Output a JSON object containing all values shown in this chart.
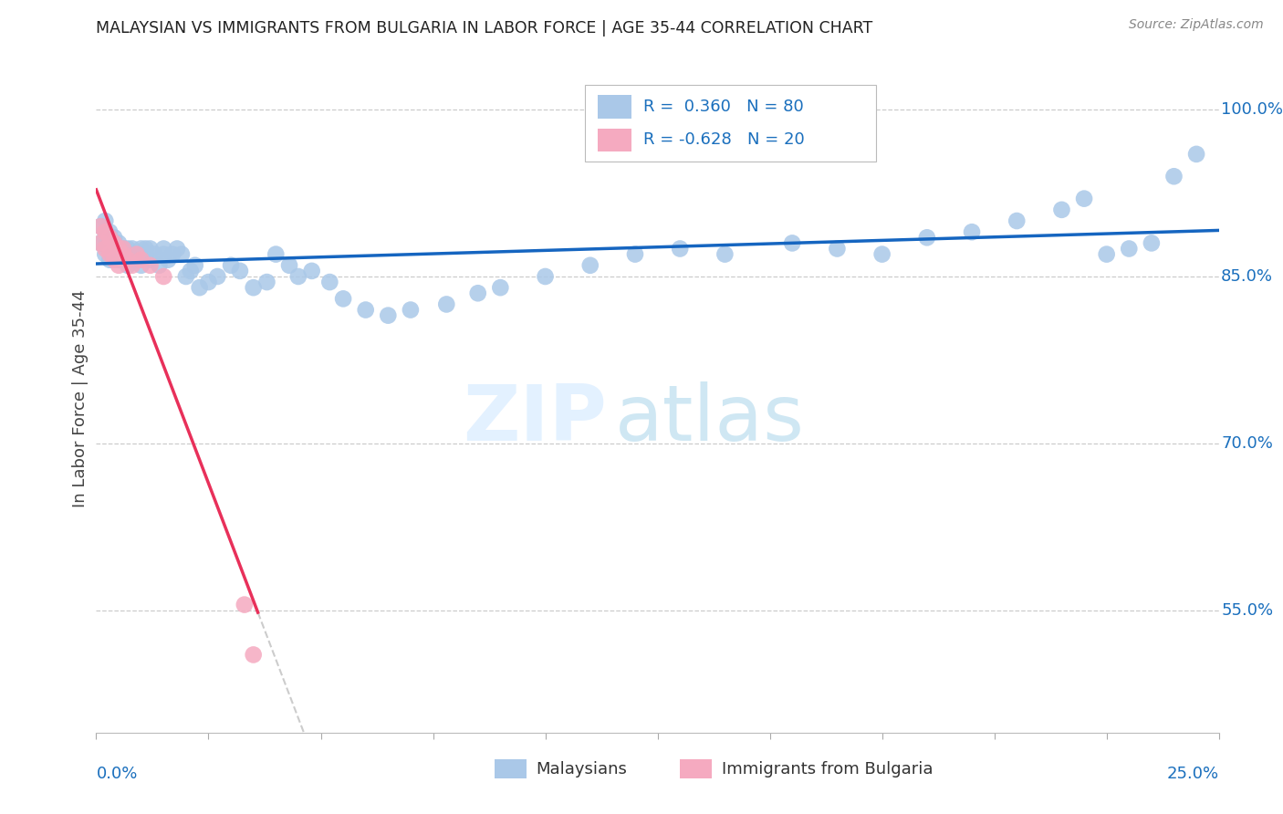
{
  "title": "MALAYSIAN VS IMMIGRANTS FROM BULGARIA IN LABOR FORCE | AGE 35-44 CORRELATION CHART",
  "source": "Source: ZipAtlas.com",
  "ylabel": "In Labor Force | Age 35-44",
  "yticks": [
    0.55,
    0.7,
    0.85,
    1.0
  ],
  "ytick_labels": [
    "55.0%",
    "70.0%",
    "85.0%",
    "100.0%"
  ],
  "xmin": 0.0,
  "xmax": 0.25,
  "ymin": 0.44,
  "ymax": 1.04,
  "blue_r": "0.360",
  "blue_n": "80",
  "pink_r": "-0.628",
  "pink_n": "20",
  "blue_color": "#aac8e8",
  "pink_color": "#f5aac0",
  "line_blue": "#1565c0",
  "line_pink": "#e8305a",
  "line_dash_color": "#cccccc",
  "legend_text_color": "#1a6fbd",
  "axis_label_color": "#1a6fbd",
  "mal_x": [
    0.001,
    0.001,
    0.002,
    0.002,
    0.002,
    0.003,
    0.003,
    0.003,
    0.003,
    0.004,
    0.004,
    0.004,
    0.005,
    0.005,
    0.005,
    0.005,
    0.006,
    0.006,
    0.006,
    0.007,
    0.007,
    0.007,
    0.008,
    0.008,
    0.009,
    0.009,
    0.01,
    0.01,
    0.011,
    0.011,
    0.012,
    0.012,
    0.013,
    0.014,
    0.015,
    0.015,
    0.016,
    0.017,
    0.018,
    0.019,
    0.02,
    0.021,
    0.022,
    0.023,
    0.025,
    0.027,
    0.03,
    0.032,
    0.035,
    0.038,
    0.04,
    0.043,
    0.045,
    0.048,
    0.052,
    0.055,
    0.06,
    0.065,
    0.07,
    0.078,
    0.085,
    0.09,
    0.1,
    0.11,
    0.12,
    0.13,
    0.14,
    0.155,
    0.165,
    0.175,
    0.185,
    0.195,
    0.205,
    0.215,
    0.22,
    0.225,
    0.23,
    0.235,
    0.24,
    0.245
  ],
  "mal_y": [
    0.88,
    0.895,
    0.87,
    0.885,
    0.9,
    0.865,
    0.875,
    0.88,
    0.89,
    0.87,
    0.875,
    0.885,
    0.865,
    0.875,
    0.88,
    0.87,
    0.865,
    0.875,
    0.87,
    0.875,
    0.86,
    0.87,
    0.865,
    0.875,
    0.87,
    0.865,
    0.875,
    0.86,
    0.87,
    0.875,
    0.865,
    0.875,
    0.87,
    0.86,
    0.875,
    0.87,
    0.865,
    0.87,
    0.875,
    0.87,
    0.85,
    0.855,
    0.86,
    0.84,
    0.845,
    0.85,
    0.86,
    0.855,
    0.84,
    0.845,
    0.87,
    0.86,
    0.85,
    0.855,
    0.845,
    0.83,
    0.82,
    0.815,
    0.82,
    0.825,
    0.835,
    0.84,
    0.85,
    0.86,
    0.87,
    0.875,
    0.87,
    0.88,
    0.875,
    0.87,
    0.885,
    0.89,
    0.9,
    0.91,
    0.92,
    0.87,
    0.875,
    0.88,
    0.94,
    0.96
  ],
  "bul_x": [
    0.001,
    0.001,
    0.002,
    0.002,
    0.003,
    0.003,
    0.004,
    0.004,
    0.005,
    0.005,
    0.006,
    0.006,
    0.007,
    0.008,
    0.009,
    0.01,
    0.012,
    0.015,
    0.033,
    0.035
  ],
  "bul_y": [
    0.895,
    0.88,
    0.89,
    0.875,
    0.885,
    0.87,
    0.88,
    0.865,
    0.875,
    0.86,
    0.87,
    0.875,
    0.865,
    0.86,
    0.87,
    0.865,
    0.86,
    0.85,
    0.555,
    0.51
  ]
}
